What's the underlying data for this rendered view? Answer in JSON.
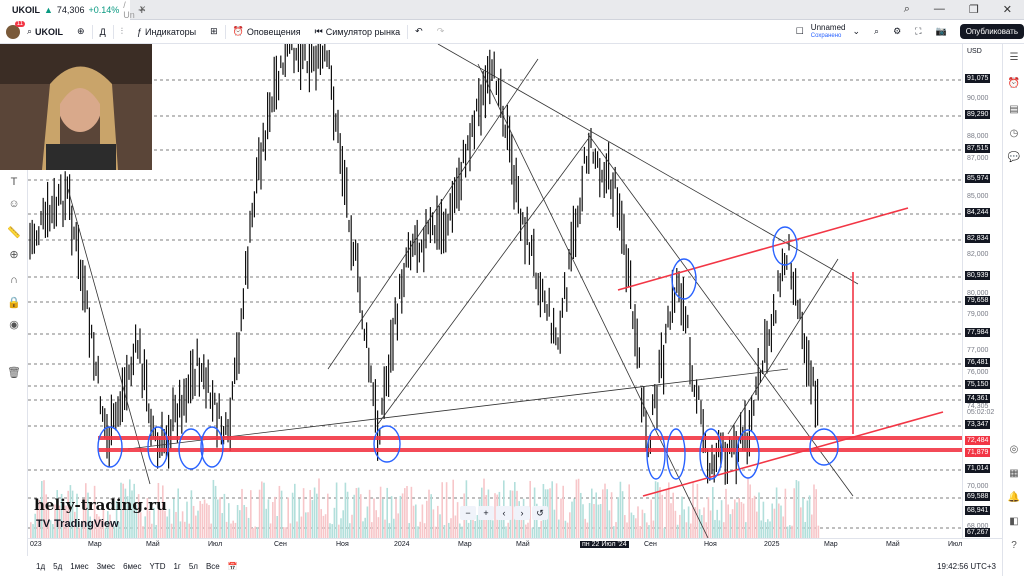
{
  "tab": {
    "symbol": "UKOIL",
    "price": "74,306",
    "change": "+0.14%",
    "suffix": "/ Un"
  },
  "window": {
    "cmd": "⌕",
    "minimize": "—",
    "maximize": "❐",
    "close": "✕"
  },
  "toolbar": {
    "avatar_badge": "11",
    "symbol": "UKOIL",
    "interval": "Д",
    "indicators": "Индикаторы",
    "alerts": "Оповещения",
    "replay": "Симулятор рынка",
    "layout_name": "Unnamed",
    "layout_status": "Сохранено",
    "publish": "Опубликовать"
  },
  "price_axis": {
    "currency": "USD",
    "labels": [
      {
        "text": "91,075",
        "style": "box"
      },
      {
        "text": "90,000",
        "style": "gray"
      },
      {
        "text": "89,290",
        "style": "box"
      },
      {
        "text": "88,000",
        "style": "gray"
      },
      {
        "text": "87,515",
        "style": "box"
      },
      {
        "text": "87,000",
        "style": "gray"
      },
      {
        "text": "85,974",
        "style": "box"
      },
      {
        "text": "85,000",
        "style": "gray"
      },
      {
        "text": "84,244",
        "style": "box"
      },
      {
        "text": "82,834",
        "style": "box"
      },
      {
        "text": "82,000",
        "style": "gray"
      },
      {
        "text": "80,939",
        "style": "box"
      },
      {
        "text": "80,000",
        "style": "gray"
      },
      {
        "text": "79,658",
        "style": "box"
      },
      {
        "text": "79,000",
        "style": "gray"
      },
      {
        "text": "77,984",
        "style": "box"
      },
      {
        "text": "77,000",
        "style": "gray"
      },
      {
        "text": "76,481",
        "style": "box"
      },
      {
        "text": "76,000",
        "style": "gray"
      },
      {
        "text": "75,150",
        "style": "box"
      },
      {
        "text": "74,361",
        "style": "box"
      },
      {
        "text": "74,305",
        "style": "gray"
      },
      {
        "text": "05:02:02",
        "style": "gray"
      },
      {
        "text": "73,347",
        "style": "box"
      },
      {
        "text": "72,484",
        "style": "red"
      },
      {
        "text": "71,879",
        "style": "red"
      },
      {
        "text": "71,014",
        "style": "box"
      },
      {
        "text": "70,000",
        "style": "gray"
      },
      {
        "text": "69,588",
        "style": "box"
      },
      {
        "text": "68,941",
        "style": "box"
      },
      {
        "text": "68,000",
        "style": "gray"
      },
      {
        "text": "67,267",
        "style": "box"
      }
    ]
  },
  "time_axis": [
    "023",
    "Мар",
    "Май",
    "Июл",
    "Сен",
    "Ноя",
    "2024",
    "Мар",
    "Май",
    "пн 22 Июл '24",
    "Сен",
    "Ноя",
    "2025",
    "Мар",
    "Май",
    "Июл"
  ],
  "bottom": {
    "ranges": [
      "1д",
      "5д",
      "1мес",
      "3мес",
      "6мес",
      "YTD",
      "1г",
      "5л",
      "Все"
    ],
    "clock": "19:42:56 UTC+3"
  },
  "watermark": "heliy-trading.ru",
  "tv_logo": "TradingView",
  "zoom": [
    "−",
    "+",
    "‹",
    "›",
    "↺"
  ],
  "colors": {
    "up": "#089981",
    "red": "#f23645",
    "blue": "#2962ff",
    "dark": "#131722"
  }
}
